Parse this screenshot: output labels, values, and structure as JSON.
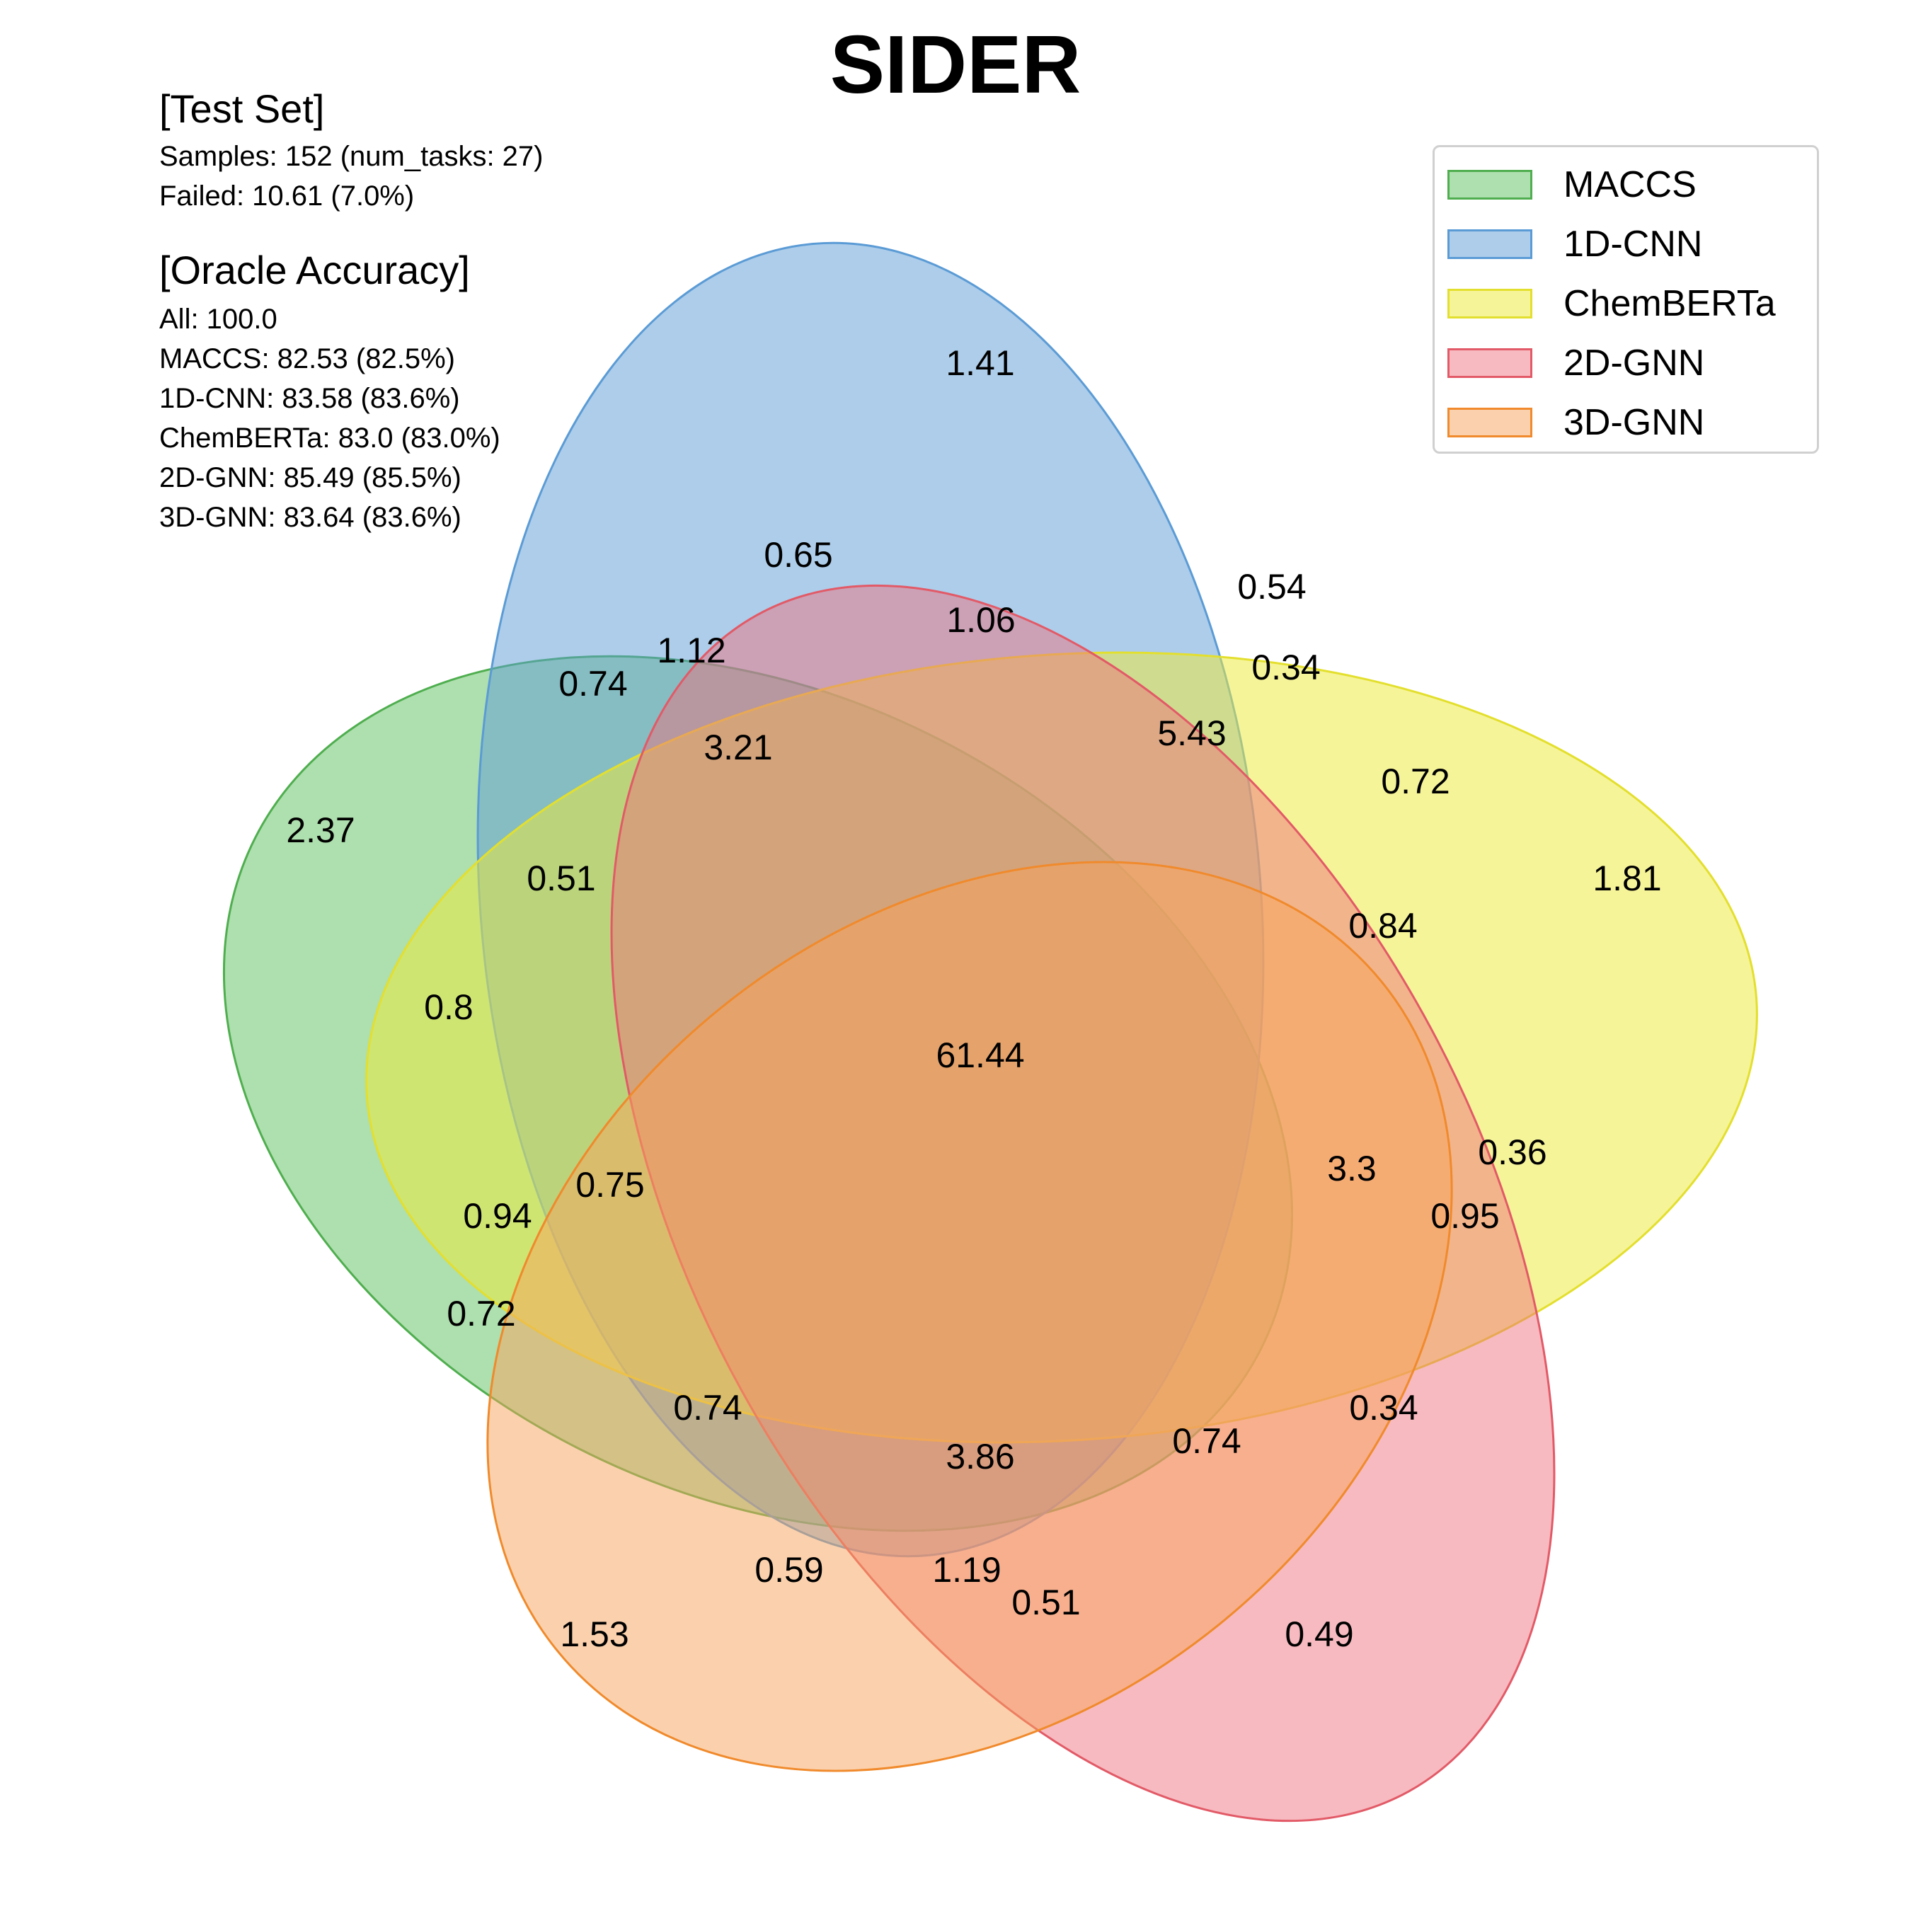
{
  "title": "SIDER",
  "test_set": {
    "heading": "[Test Set]",
    "lines": [
      "Samples: 152 (num_tasks: 27)",
      "Failed: 10.61 (7.0%)"
    ]
  },
  "oracle": {
    "heading": "[Oracle Accuracy]",
    "lines": [
      "All: 100.0",
      "MACCS: 82.53 (82.5%)",
      "1D-CNN: 83.58 (83.6%)",
      "ChemBERTa: 83.0 (83.0%)",
      "2D-GNN: 85.49 (85.5%)",
      "3D-GNN: 83.64 (83.6%)"
    ]
  },
  "legend": [
    {
      "label": "MACCS",
      "color": "#6cc56c"
    },
    {
      "label": "1D-CNN",
      "color": "#5b9bd5"
    },
    {
      "label": "ChemBERTa",
      "color": "#eeea3c"
    },
    {
      "label": "2D-GNN",
      "color": "#ef6f7c"
    },
    {
      "label": "3D-GNN",
      "color": "#f7a45c"
    }
  ],
  "regions": [
    {
      "value": "1.41"
    },
    {
      "value": "0.65"
    },
    {
      "value": "0.54"
    },
    {
      "value": "1.06"
    },
    {
      "value": "1.12"
    },
    {
      "value": "0.34"
    },
    {
      "value": "0.74"
    },
    {
      "value": "5.43"
    },
    {
      "value": "3.21"
    },
    {
      "value": "0.72"
    },
    {
      "value": "2.37"
    },
    {
      "value": "0.51"
    },
    {
      "value": "1.81"
    },
    {
      "value": "0.84"
    },
    {
      "value": "0.8"
    },
    {
      "value": "61.44"
    },
    {
      "value": "0.36"
    },
    {
      "value": "3.3"
    },
    {
      "value": "0.75"
    },
    {
      "value": "0.94"
    },
    {
      "value": "0.95"
    },
    {
      "value": "0.72"
    },
    {
      "value": "0.74"
    },
    {
      "value": "0.34"
    },
    {
      "value": "0.74"
    },
    {
      "value": "3.86"
    },
    {
      "value": "0.59"
    },
    {
      "value": "1.19"
    },
    {
      "value": "0.51"
    },
    {
      "value": "1.53"
    },
    {
      "value": "0.49"
    }
  ]
}
